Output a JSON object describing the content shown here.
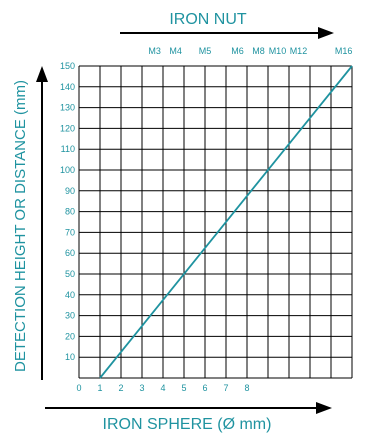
{
  "chart_data": {
    "type": "line",
    "top_axis_label": "IRON NUT",
    "xlabel": "IRON SPHERE (Ø mm)",
    "ylabel": "DETECTION HEIGHT OR DISTANCE (mm)",
    "xlim": [
      0,
      13
    ],
    "ylim": [
      0,
      150
    ],
    "x_ticks": [
      "0",
      "1",
      "2",
      "3",
      "4",
      "5",
      "6",
      "7",
      "8"
    ],
    "y_ticks": [
      "10",
      "20",
      "30",
      "40",
      "50",
      "60",
      "70",
      "80",
      "90",
      "100",
      "110",
      "120",
      "130",
      "140",
      "150"
    ],
    "grid": true,
    "nut_sizes": [
      {
        "label": "M3",
        "x": 3.6
      },
      {
        "label": "M4",
        "x": 4.6
      },
      {
        "label": "M5",
        "x": 6.0
      },
      {
        "label": "M6",
        "x": 7.55
      },
      {
        "label": "M8",
        "x": 8.55
      },
      {
        "label": "M10",
        "x": 9.45
      },
      {
        "label": "M12",
        "x": 10.45
      },
      {
        "label": "M16",
        "x": 12.6
      }
    ],
    "series": [
      {
        "values": [
          {
            "x": 1,
            "y": 0
          },
          {
            "x": 13,
            "y": 150
          }
        ]
      }
    ]
  },
  "colors": {
    "accent": "#1f93a0",
    "grid": "#000000",
    "arrow": "#000000"
  }
}
